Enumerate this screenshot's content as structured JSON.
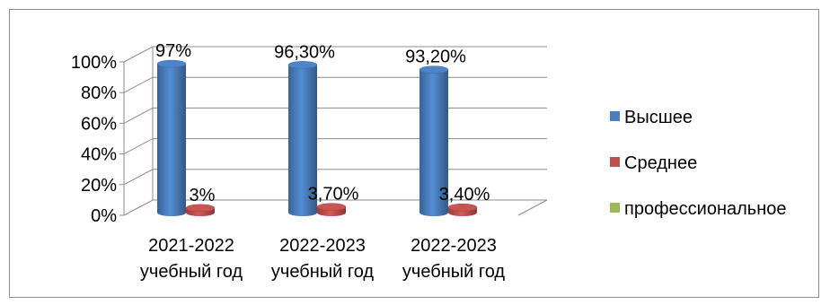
{
  "chart_data": {
    "type": "bar",
    "style": "3d-cylinder",
    "categories": [
      [
        "2021-2022",
        "учебный год"
      ],
      [
        "2022-2023",
        "учебный год"
      ],
      [
        "2022-2023",
        "учебный год"
      ]
    ],
    "series": [
      {
        "name": "Высшее",
        "color": "#4a7ebf",
        "values": [
          97,
          96.3,
          93.2
        ],
        "labels": [
          "97%",
          "96,30%",
          "93,20%"
        ]
      },
      {
        "name": "Среднее",
        "color": "#c0504d",
        "values": [
          3,
          3.7,
          3.4
        ],
        "labels": [
          "3%",
          "3,70%",
          "3,40%"
        ]
      },
      {
        "name": "профессиональное",
        "color": "#9bbb59",
        "values": [
          0,
          0,
          0
        ],
        "labels": [
          "",
          "",
          ""
        ]
      }
    ],
    "yticks": [
      "0%",
      "20%",
      "40%",
      "60%",
      "80%",
      "100%"
    ],
    "ylim": [
      0,
      100
    ],
    "grid": true,
    "legend_position": "right"
  }
}
